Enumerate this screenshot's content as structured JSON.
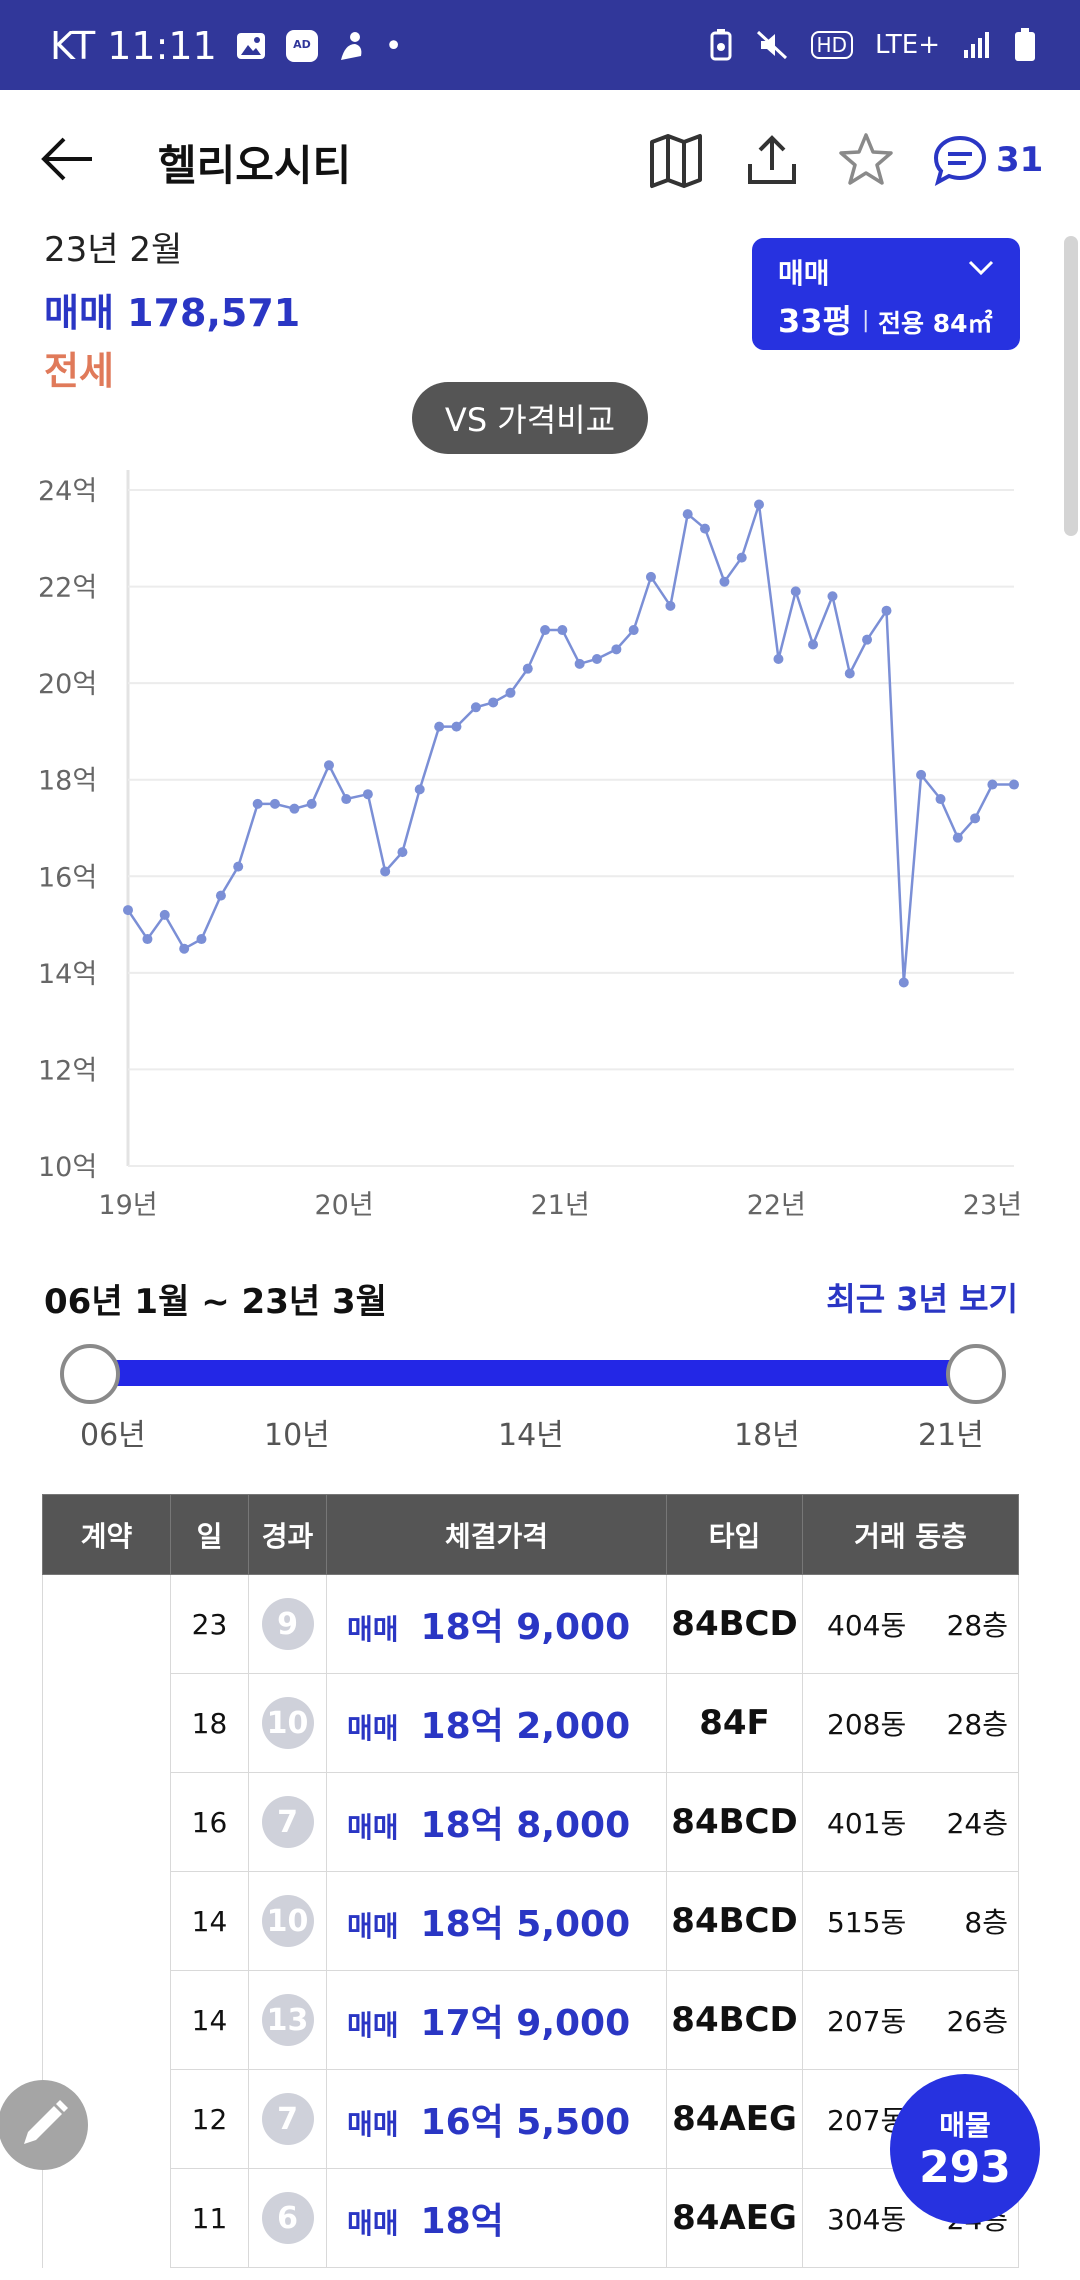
{
  "status_bar": {
    "carrier_time": "KT 11:11",
    "dot": "•",
    "network": "LTE+",
    "hd": "HD"
  },
  "header": {
    "title": "헬리오시티",
    "comment_count": "31"
  },
  "summary": {
    "date": "23년 2월",
    "sale": "매매 178,571",
    "jeonse": "전세"
  },
  "type_selector": {
    "trade": "매매",
    "size": "33평",
    "separator": "|",
    "area": "전용 84㎡"
  },
  "compare_button": "VS 가격비교",
  "chart_data": {
    "type": "line",
    "title": "",
    "xlabel": "",
    "ylabel": "",
    "y_ticks": [
      "24억",
      "22억",
      "20억",
      "18억",
      "16억",
      "14억",
      "12억",
      "10억"
    ],
    "x_ticks": [
      "19년",
      "20년",
      "21년",
      "22년",
      "23년"
    ],
    "ylim": [
      10,
      24
    ],
    "xlim": [
      2019.0,
      2023.1
    ],
    "grid": true,
    "line_color": "#7b8fd6",
    "series": [
      {
        "x": [
          2019.0,
          2019.09,
          2019.17,
          2019.26,
          2019.34,
          2019.43,
          2019.51,
          2019.6,
          2019.68,
          2019.77,
          2019.85,
          2019.93,
          2020.01,
          2020.11,
          2020.19,
          2020.27,
          2020.35,
          2020.44,
          2020.52,
          2020.61,
          2020.69,
          2020.77,
          2020.85,
          2020.93,
          2021.01,
          2021.09,
          2021.17,
          2021.26,
          2021.34,
          2021.42,
          2021.51,
          2021.59,
          2021.67,
          2021.76,
          2021.84,
          2021.92,
          2022.01,
          2022.09,
          2022.17,
          2022.26,
          2022.34,
          2022.42,
          2022.51,
          2022.59,
          2022.67,
          2022.76,
          2022.84,
          2022.92,
          2023.0,
          2023.1
        ],
        "values": [
          15.3,
          14.7,
          15.2,
          14.5,
          14.7,
          15.6,
          16.2,
          17.5,
          17.5,
          17.4,
          17.5,
          18.3,
          17.6,
          17.7,
          16.1,
          16.5,
          17.8,
          19.1,
          19.1,
          19.5,
          19.6,
          19.8,
          20.3,
          21.1,
          21.1,
          20.4,
          20.5,
          20.7,
          21.1,
          22.2,
          21.6,
          23.5,
          23.2,
          22.1,
          22.6,
          23.7,
          20.5,
          21.9,
          20.8,
          21.8,
          20.2,
          20.9,
          21.5,
          13.8,
          18.1,
          17.6,
          16.8,
          17.2,
          17.9,
          17.9
        ]
      }
    ]
  },
  "range": {
    "label": "06년 1월 ~ 23년 3월",
    "recent_link": "최근 3년 보기",
    "ticks": [
      "06년",
      "10년",
      "14년",
      "18년",
      "21년"
    ]
  },
  "table": {
    "headers": [
      "계약",
      "일",
      "경과",
      "체결가격",
      "타입",
      "거래 동층"
    ],
    "rows": [
      {
        "day": "23",
        "elapsed": "9",
        "kind": "매매",
        "price": "18억 9,000",
        "type": "84BCD",
        "dong": "404동",
        "floor": "28층"
      },
      {
        "day": "18",
        "elapsed": "10",
        "kind": "매매",
        "price": "18억 2,000",
        "type": "84F",
        "dong": "208동",
        "floor": "28층"
      },
      {
        "day": "16",
        "elapsed": "7",
        "kind": "매매",
        "price": "18억 8,000",
        "type": "84BCD",
        "dong": "401동",
        "floor": "24층"
      },
      {
        "day": "14",
        "elapsed": "10",
        "kind": "매매",
        "price": "18억 5,000",
        "type": "84BCD",
        "dong": "515동",
        "floor": "8층"
      },
      {
        "day": "14",
        "elapsed": "13",
        "kind": "매매",
        "price": "17억 9,000",
        "type": "84BCD",
        "dong": "207동",
        "floor": "26층"
      },
      {
        "day": "12",
        "elapsed": "7",
        "kind": "매매",
        "price": "16억 5,500",
        "type": "84AEG",
        "dong": "207동",
        "floor": ""
      },
      {
        "day": "11",
        "elapsed": "6",
        "kind": "매매",
        "price": "18억",
        "type": "84AEG",
        "dong": "304동",
        "floor": "24층"
      }
    ]
  },
  "fab": {
    "listing_label": "매물",
    "listing_count": "293"
  }
}
